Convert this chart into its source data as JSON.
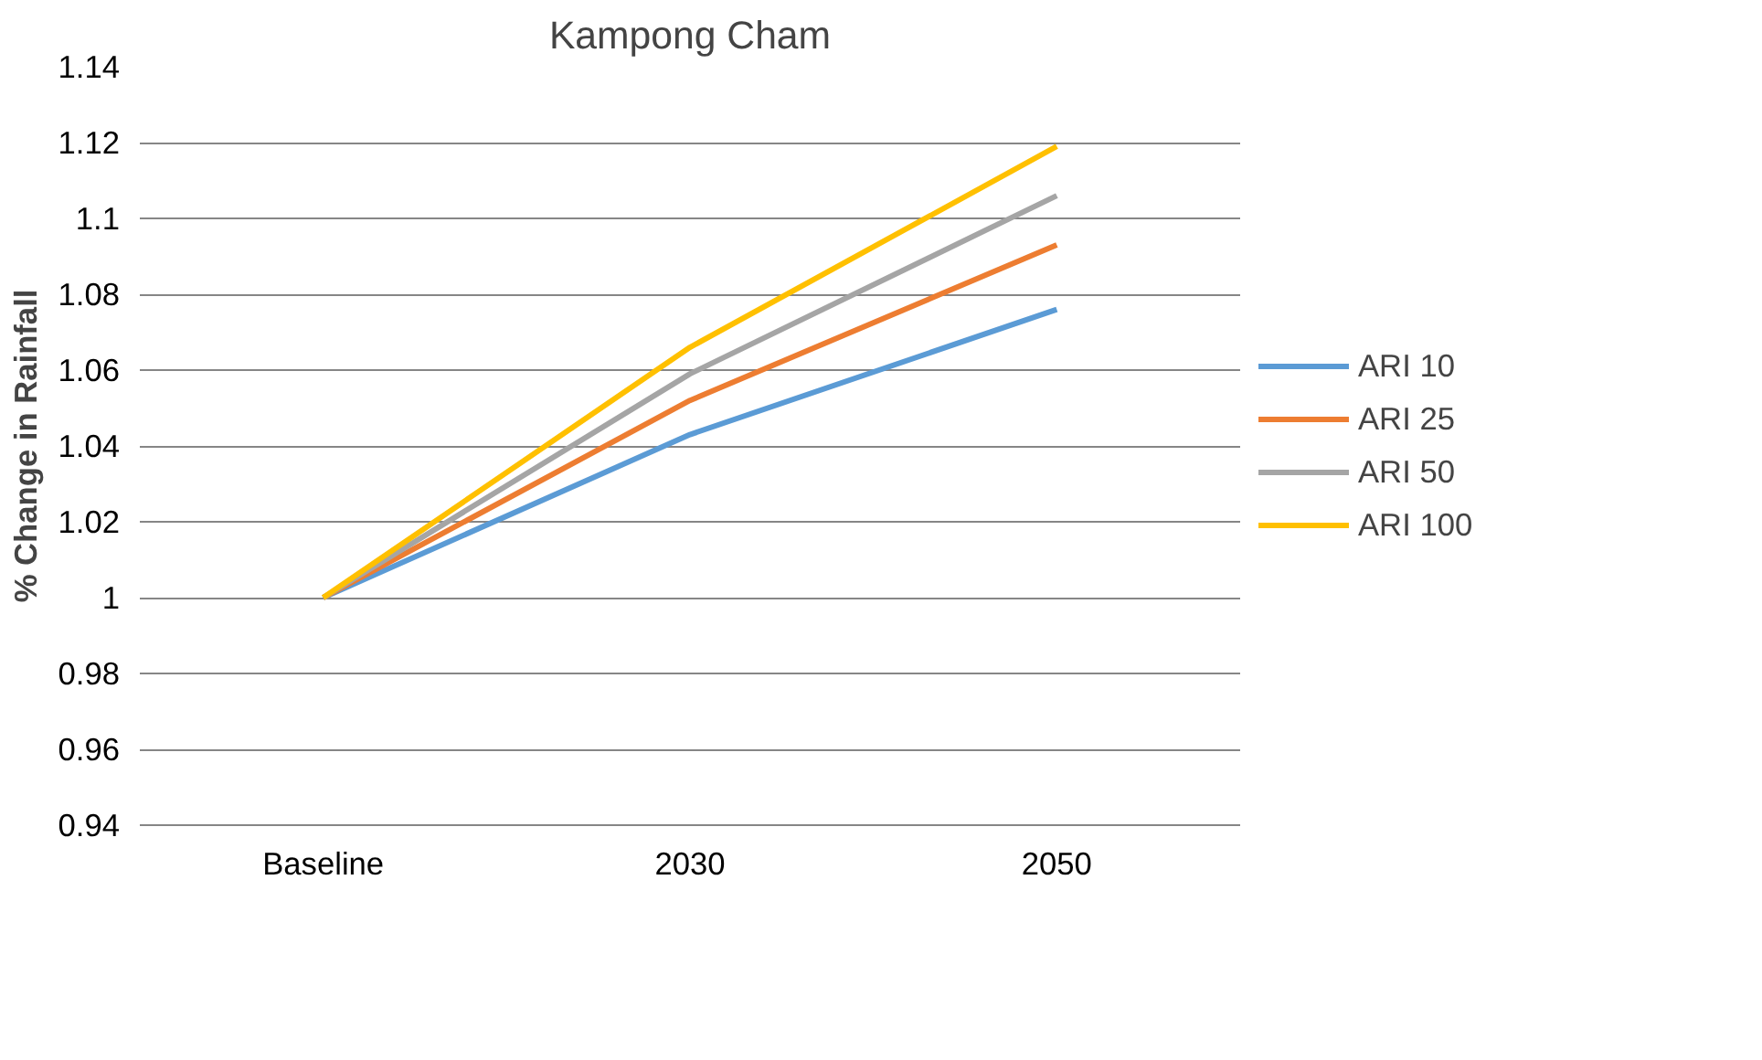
{
  "chart_data": {
    "type": "line",
    "title": "Kampong Cham",
    "ylabel": "% Change in Rainfall",
    "categories": [
      "Baseline",
      "2030",
      "2050"
    ],
    "series": [
      {
        "name": "ARI 10",
        "color": "#5b9bd5",
        "values": [
          1,
          1.043,
          1.076
        ]
      },
      {
        "name": "ARI 25",
        "color": "#ed7d31",
        "values": [
          1,
          1.052,
          1.093
        ]
      },
      {
        "name": "ARI 50",
        "color": "#a5a5a5",
        "values": [
          1,
          1.059,
          1.106
        ]
      },
      {
        "name": "ARI 100",
        "color": "#ffc000",
        "values": [
          1,
          1.066,
          1.119
        ]
      }
    ],
    "ylim": [
      0.94,
      1.14
    ],
    "yticks": [
      0.94,
      0.96,
      0.98,
      1,
      1.02,
      1.04,
      1.06,
      1.08,
      1.1,
      1.12,
      1.14
    ],
    "grid": "y",
    "legend": "right",
    "marker": "none",
    "line_style": "solid"
  }
}
